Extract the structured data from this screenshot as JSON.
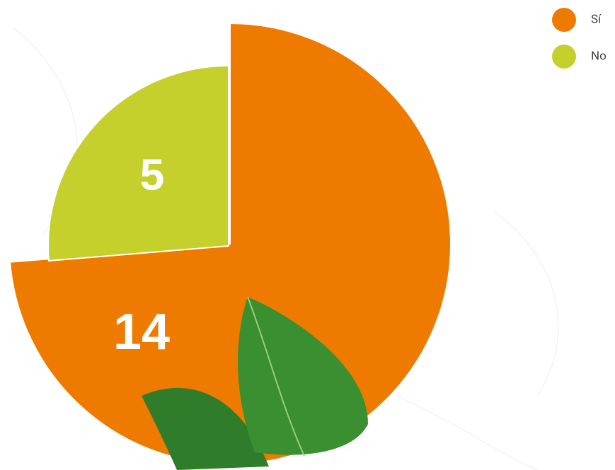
{
  "chart_data": {
    "type": "pie",
    "categories": [
      "Sí",
      "No"
    ],
    "values": [
      14,
      5
    ],
    "colors": [
      "#ef7a00",
      "#c5d02c"
    ],
    "legend": "top-right"
  }
}
